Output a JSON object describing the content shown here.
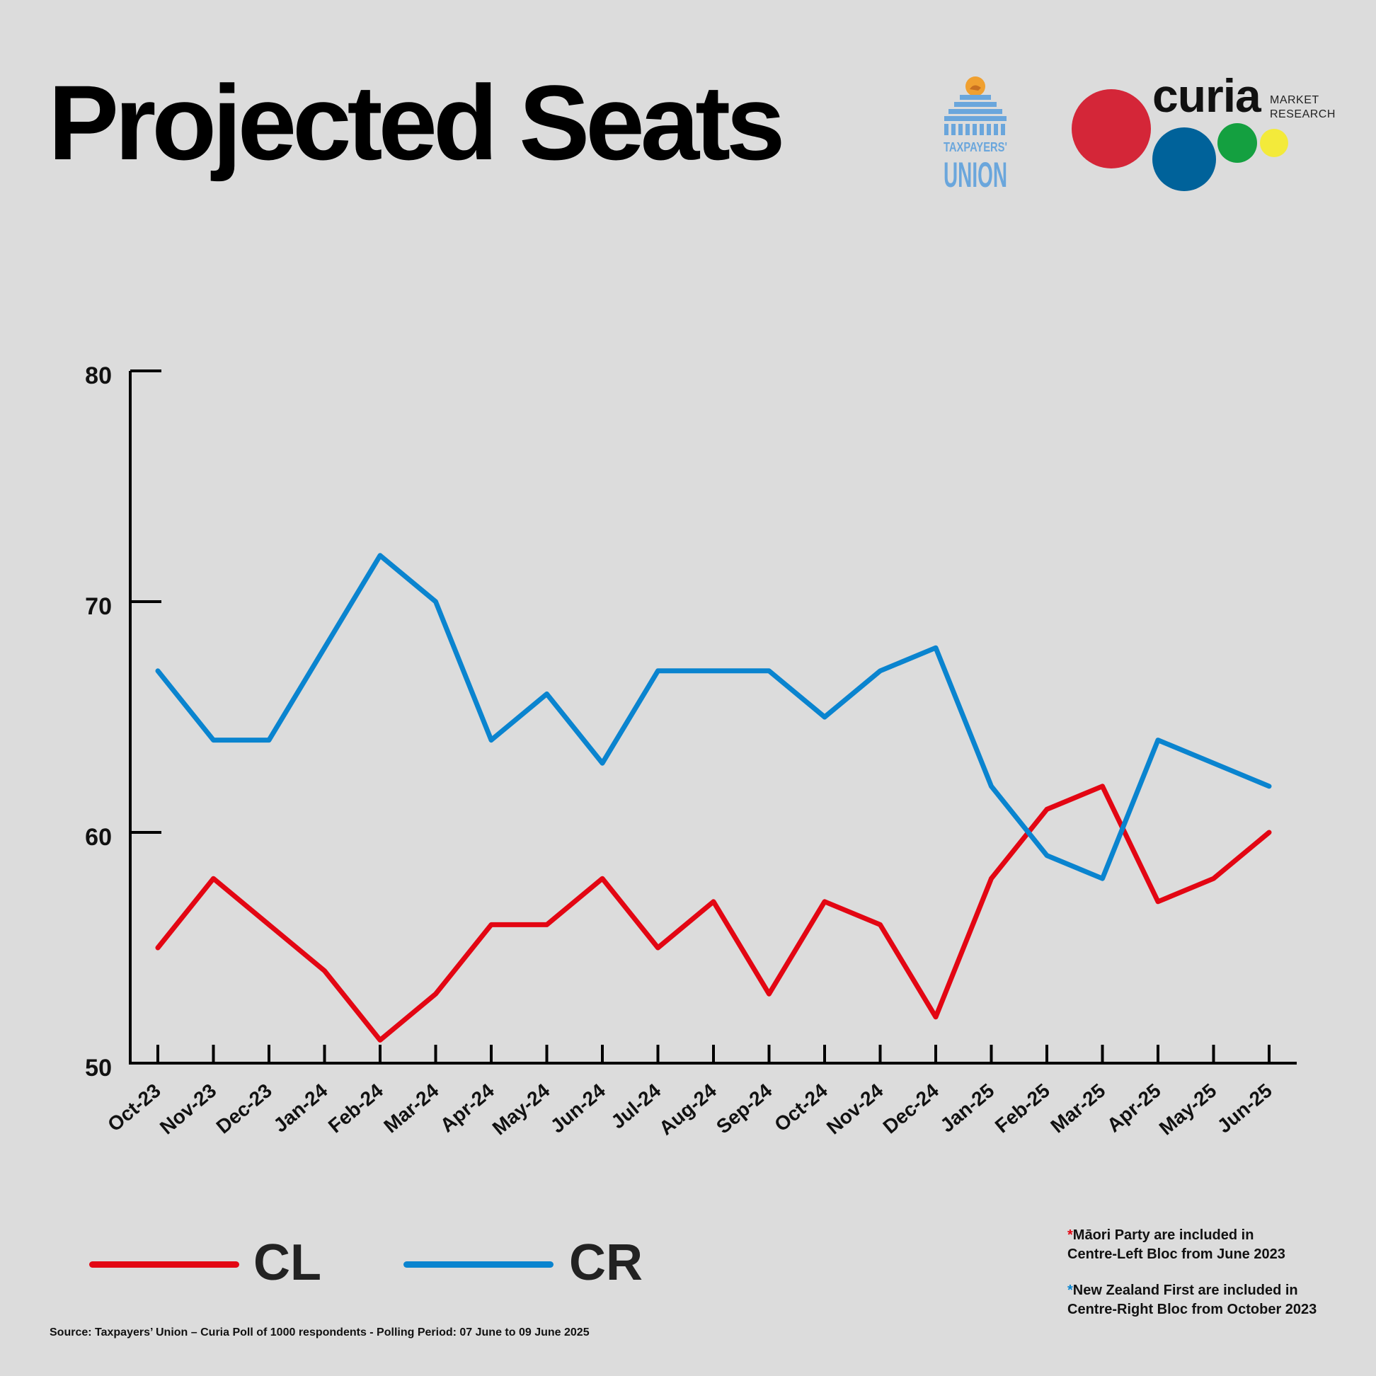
{
  "title": "Projected Seats",
  "logos": {
    "taxpayers_union": {
      "line1": "TAXPAYERS'",
      "line2": "UNION",
      "color": "#6aa6dc",
      "sun_color": "#f0a030"
    },
    "curia": {
      "word": "curia",
      "sub1": "MARKET",
      "sub2": "RESEARCH",
      "dots": [
        "#d42638",
        "#00629a",
        "#14a040",
        "#f3ea3a"
      ]
    }
  },
  "chart_data": {
    "type": "line",
    "categories": [
      "Oct-23",
      "Nov-23",
      "Dec-23",
      "Jan-24",
      "Feb-24",
      "Mar-24",
      "Apr-24",
      "May-24",
      "Jun-24",
      "Jul-24",
      "Aug-24",
      "Sep-24",
      "Oct-24",
      "Nov-24",
      "Dec-24",
      "Jan-25",
      "Feb-25",
      "Mar-25",
      "Apr-25",
      "May-25",
      "Jun-25"
    ],
    "series": [
      {
        "name": "CL",
        "color": "#e30613",
        "values": [
          55,
          58,
          56,
          54,
          51,
          53,
          56,
          56,
          58,
          55,
          57,
          53,
          57,
          56,
          52,
          58,
          61,
          62,
          57,
          58,
          60
        ]
      },
      {
        "name": "CR",
        "color": "#0a84cf",
        "values": [
          67,
          64,
          64,
          68,
          72,
          70,
          64,
          66,
          63,
          67,
          67,
          67,
          65,
          67,
          68,
          62,
          59,
          58,
          64,
          63,
          62
        ]
      }
    ],
    "ylim": [
      50,
      80
    ],
    "yticks": [
      50,
      60,
      70,
      80
    ],
    "xlabel": "",
    "ylabel": "",
    "legend": "bottom-left"
  },
  "notes": {
    "note1_star": "*",
    "note1_line1": "Māori Party are included in",
    "note1_line2": "Centre-Left Bloc from June 2023",
    "note2_star": "*",
    "note2_line1": "New Zealand First are included in",
    "note2_line2": "Centre-Right Bloc from October 2023"
  },
  "source": "Source: Taxpayers’ Union – Curia Poll of 1000 respondents -  Polling Period: 07 June to 09 June 2025"
}
